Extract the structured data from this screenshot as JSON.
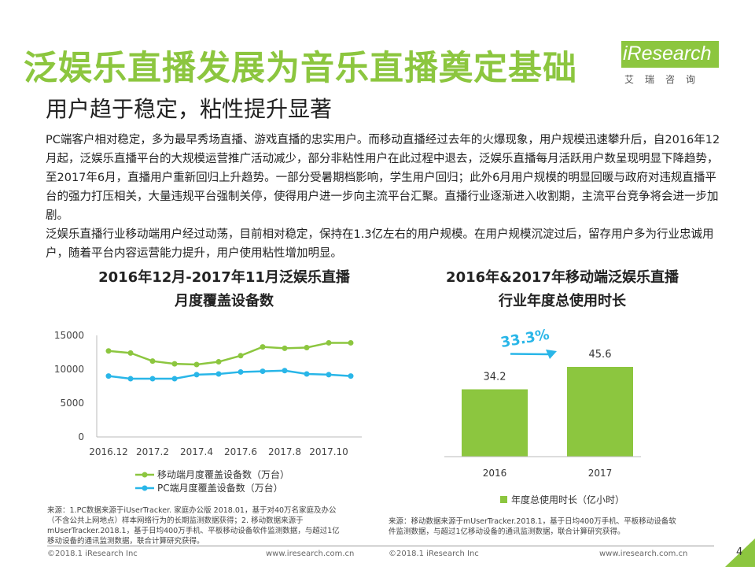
{
  "header": {
    "title": "泛娱乐直播发展为音乐直播奠定基础",
    "subtitle": "用户趋于稳定，粘性提升显著"
  },
  "logo": {
    "word": "iResearch",
    "cn": "艾瑞咨询"
  },
  "body_paragraphs": [
    "PC端客户相对稳定，多为最早秀场直播、游戏直播的忠实用户。而移动直播经过去年的火爆现象，用户规模迅速攀升后，自2016年12月起，泛娱乐直播平台的大规模运营推广活动减少，部分非粘性用户在此过程中退去，泛娱乐直播每月活跃用户数呈现明显下降趋势，至2017年6月，直播用户重新回归上升趋势。一部分受暑期档影响，学生用户回归；此外6月用户规模的明显回暖与政府对违规直播平台的强力打压相关，大量违规平台强制关停，使得用户进一步向主流平台汇聚。直播行业逐渐进入收割期，主流平台竞争将会进一步加剧。",
    "泛娱乐直播行业移动端用户经过动荡，目前相对稳定，保持在1.3亿左右的用户规模。在用户规模沉淀过后，留存用户多为行业忠诚用户，随着平台内容运营能力提升，用户使用粘性增加明显。"
  ],
  "left_chart_title": [
    "2016年12月-2017年11月泛娱乐直播",
    "月度覆盖设备数"
  ],
  "right_chart_title": [
    "2016年&2017年移动端泛娱乐直播",
    "行业年度总使用时长"
  ],
  "chart_data": [
    {
      "type": "line",
      "title": "2016年12月-2017年11月泛娱乐直播月度覆盖设备数",
      "x_tick_labels": [
        "2016.12",
        "2017.2",
        "2017.4",
        "2017.6",
        "2017.8",
        "2017.10"
      ],
      "ylim": [
        0,
        15000
      ],
      "y_ticks": [
        "0",
        "5000",
        "10000",
        "15000"
      ],
      "grid": false,
      "series": [
        {
          "name": "移动端月度覆盖设备数（万台）",
          "color": "#8cc63f",
          "values": [
            12700,
            12400,
            11200,
            10800,
            10700,
            11100,
            12000,
            13300,
            13100,
            13200,
            13900,
            13900
          ]
        },
        {
          "name": "PC端月度覆盖设备数（万台）",
          "color": "#29b6e8",
          "values": [
            9000,
            8600,
            8600,
            8600,
            9200,
            9300,
            9600,
            9700,
            9800,
            9300,
            9200,
            9000
          ]
        }
      ]
    },
    {
      "type": "bar",
      "title": "2016年&2017年移动端泛娱乐直播行业年度总使用时长",
      "categories": [
        "2016",
        "2017"
      ],
      "series": [
        {
          "name": "年度总使用时长（亿小时）",
          "color": "#8cc63f",
          "values": [
            34.2,
            45.6
          ]
        }
      ],
      "data_labels": [
        "34.2",
        "45.6"
      ],
      "ylim": [
        0,
        60
      ],
      "growth_annotation": "33.3%",
      "accent_color": "#29b6e8"
    }
  ],
  "notes": {
    "left": [
      "来源：1.PC数据来源于iUserTracker. 家庭办公版 2018.01，基于对40万名家庭及办公",
      "（不含公共上网地点）样本网络行为的长期监测数据获得；2. 移动数据来源于",
      "mUserTracker.2018.1，基于日均400万手机、平板移动设备软件监测数据，与超过1亿",
      "移动设备的通讯监测数据，联合计算研究获得。"
    ],
    "right": [
      "来源：移动数据来源于mUserTracker.2018.1，基于日均400万手机、平板移动设备软",
      "件监测数据，与超过1亿移动设备的通讯监测数据，联合计算研究获得。"
    ]
  },
  "footer": {
    "copyright": "©2018.1 iResearch Inc",
    "url": "www.iresearch.com.cn",
    "page_number": "4"
  }
}
